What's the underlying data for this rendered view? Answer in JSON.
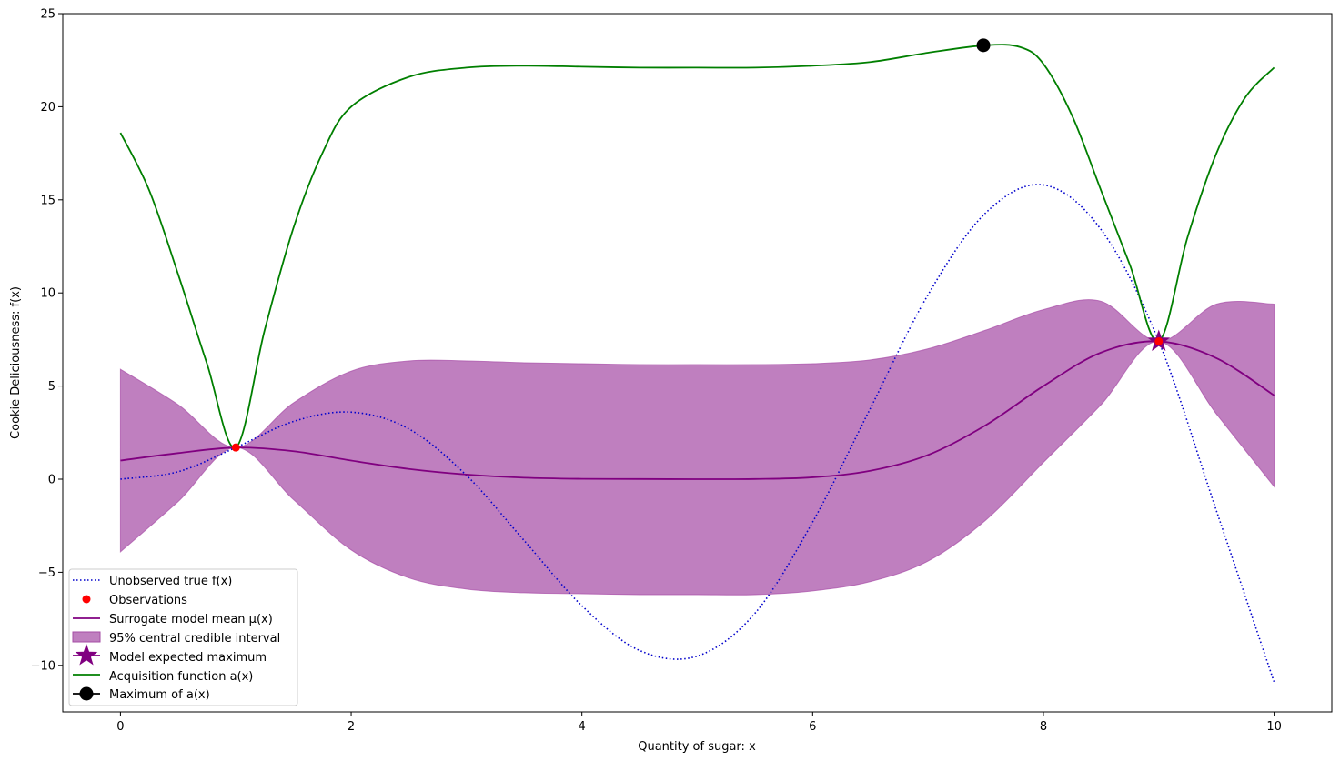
{
  "chart_data": {
    "type": "line",
    "title": "",
    "xlabel": "Quantity of sugar: x",
    "ylabel": "Cookie Deliciousness: f(x)",
    "xlim": [
      -0.5,
      10.5
    ],
    "ylim": [
      -12.5,
      25
    ],
    "xticks": [
      0,
      2,
      4,
      6,
      8,
      10
    ],
    "yticks": [
      -10,
      -5,
      0,
      5,
      10,
      15,
      20,
      25
    ],
    "grid": false,
    "legend_position": "bottom-left",
    "legend": [
      "Unobserved true f(x)",
      "Observations",
      "Surrogate model mean μ(x)",
      "95% central credible interval",
      "Model expected maximum",
      "Acquisition function a(x)",
      "Maximum of a(x)"
    ],
    "colors": {
      "true_f": "#0000cc",
      "observations": "#ff0000",
      "mean": "#800080",
      "interval": "#bf7fbf",
      "interval_edge": "#a64ca6",
      "acquisition": "#007f00",
      "acq_max": "#000000"
    },
    "true_f": {
      "x": [
        0,
        0.5,
        1,
        1.5,
        2,
        2.5,
        3,
        3.5,
        4,
        4.5,
        5,
        5.5,
        6,
        6.5,
        7,
        7.5,
        8,
        8.5,
        9,
        9.5,
        10
      ],
      "y": [
        0,
        0.4,
        1.7,
        3.1,
        3.6,
        2.7,
        0.2,
        -3.3,
        -6.8,
        -9.2,
        -9.5,
        -7.2,
        -2.3,
        3.8,
        9.9,
        14.3,
        15.8,
        13.4,
        7.4,
        -1.7,
        -10.9
      ]
    },
    "observations": {
      "x": [
        1,
        9
      ],
      "y": [
        1.7,
        7.4
      ]
    },
    "mean": {
      "x": [
        0,
        0.5,
        1,
        1.5,
        2,
        2.5,
        3,
        3.5,
        4,
        4.5,
        5,
        5.5,
        6,
        6.5,
        7,
        7.5,
        8,
        8.5,
        9,
        9.5,
        10
      ],
      "y": [
        1.0,
        1.4,
        1.7,
        1.5,
        1.0,
        0.55,
        0.25,
        0.08,
        0.02,
        0.01,
        0.0,
        0.01,
        0.1,
        0.45,
        1.3,
        2.9,
        5.0,
        6.8,
        7.4,
        6.5,
        4.5
      ]
    },
    "interval": {
      "x": [
        0,
        0.5,
        1,
        1.5,
        2,
        2.5,
        3,
        3.5,
        4,
        4.5,
        5,
        5.5,
        6,
        6.5,
        7,
        7.5,
        8,
        8.5,
        9,
        9.5,
        10
      ],
      "upper": [
        5.9,
        4.0,
        1.7,
        4.1,
        5.8,
        6.35,
        6.35,
        6.25,
        6.2,
        6.15,
        6.15,
        6.15,
        6.2,
        6.4,
        7.0,
        8.0,
        9.1,
        9.55,
        7.4,
        9.4,
        9.4
      ],
      "lower": [
        -3.9,
        -1.2,
        1.7,
        -1.1,
        -3.8,
        -5.3,
        -5.9,
        -6.1,
        -6.15,
        -6.2,
        -6.2,
        -6.2,
        -6.0,
        -5.5,
        -4.4,
        -2.2,
        0.9,
        4.0,
        7.4,
        3.5,
        -0.4
      ]
    },
    "acquisition": {
      "x": [
        0,
        0.25,
        0.5,
        0.75,
        1,
        1.25,
        1.5,
        1.75,
        2,
        2.5,
        3,
        3.5,
        4,
        4.5,
        5,
        5.5,
        6,
        6.5,
        7,
        7.5,
        7.8,
        8,
        8.25,
        8.5,
        8.75,
        9,
        9.25,
        9.5,
        9.75,
        10
      ],
      "y": [
        18.6,
        15.5,
        11.0,
        6.2,
        1.7,
        8.0,
        13.5,
        17.5,
        20.0,
        21.6,
        22.1,
        22.2,
        22.15,
        22.1,
        22.1,
        22.1,
        22.2,
        22.4,
        22.9,
        23.3,
        23.2,
        22.3,
        19.5,
        15.5,
        11.5,
        7.4,
        13.0,
        17.5,
        20.5,
        22.1
      ]
    },
    "model_expected_max": {
      "x": 9.0,
      "y": 7.4
    },
    "acq_max": {
      "x": 7.48,
      "y": 23.3
    }
  }
}
